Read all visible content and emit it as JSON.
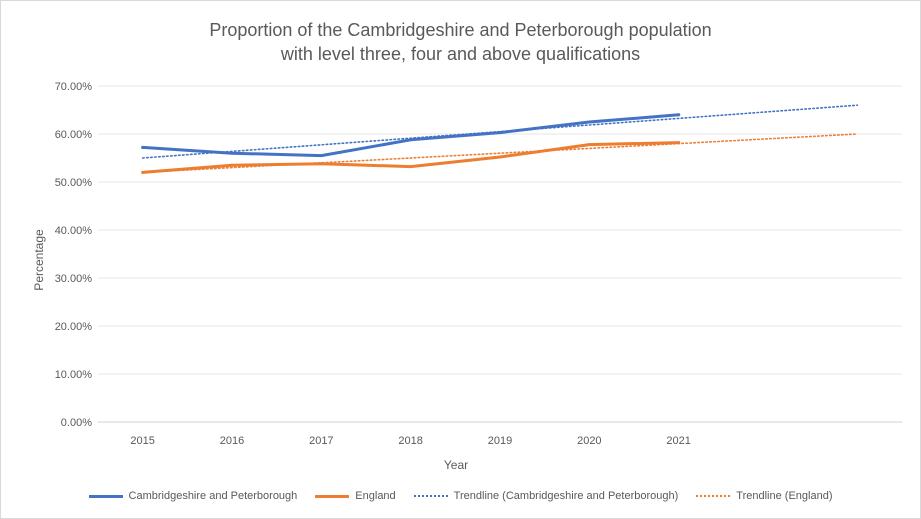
{
  "chart_data": {
    "type": "line",
    "title": [
      "Proportion of the Cambridgeshire and Peterborough population",
      "with level three, four and above qualifications"
    ],
    "xlabel": "Year",
    "ylabel": "Percentage",
    "categories": [
      "2015",
      "2016",
      "2017",
      "2018",
      "2019",
      "2020",
      "2021"
    ],
    "ylim": [
      0,
      70
    ],
    "yticks": [
      "0.00%",
      "10.00%",
      "20.00%",
      "30.00%",
      "40.00%",
      "50.00%",
      "60.00%",
      "70.00%"
    ],
    "grid": true,
    "legend_position": "bottom",
    "series": [
      {
        "name": "Cambridgeshire and Peterborough",
        "color": "#4472c4",
        "values": [
          57.2,
          56.0,
          55.5,
          58.8,
          60.3,
          62.5,
          64.0
        ]
      },
      {
        "name": "England",
        "color": "#ed7d31",
        "values": [
          52.0,
          53.5,
          53.8,
          53.2,
          55.2,
          57.8,
          58.2
        ]
      }
    ],
    "trendlines": [
      {
        "name": "Trendline (Cambridgeshire and Peterborough)",
        "color": "#4472c4",
        "from": 55.0,
        "to": 66.0
      },
      {
        "name": "Trendline (England)",
        "color": "#ed7d31",
        "from": 52.0,
        "to": 60.0
      }
    ]
  }
}
